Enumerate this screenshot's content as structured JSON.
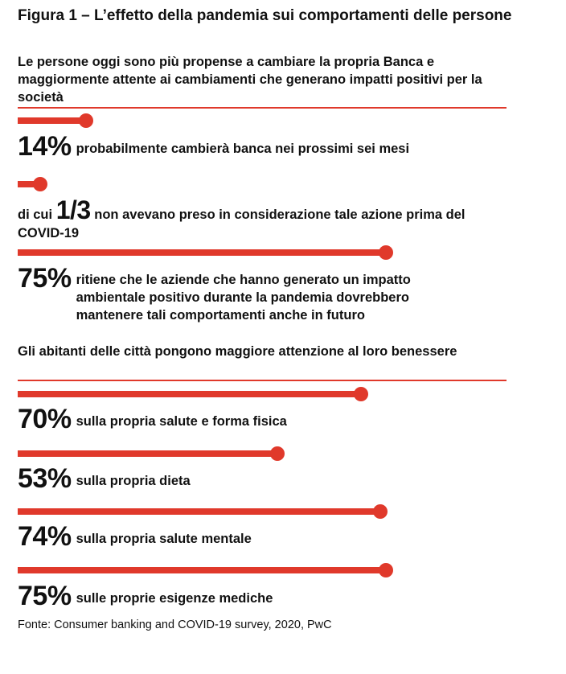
{
  "title": "Figura 1 – L’effetto della pandemia sui comportamenti delle persone",
  "section1": {
    "heading": "Le persone oggi sono più propense a cambiare la propria Banca e maggiormente attente ai cambiamenti che generano impatti positivi per la società"
  },
  "section2": {
    "heading": "Gli abitanti delle città pongono maggiore attenzione al loro benessere"
  },
  "chart_data": {
    "type": "bar",
    "orientation": "horizontal",
    "unit": "%",
    "xlim": [
      0,
      100
    ],
    "items": [
      {
        "value": 14,
        "label": "14%",
        "text": "probabilmente cambierà banca nei prossimi sei mesi",
        "section": 1
      },
      {
        "value": 4.67,
        "prefix": "di cui",
        "label": "1/3",
        "text": "non avevano preso in considerazione tale azione prima del COVID-19",
        "section": 1
      },
      {
        "value": 75,
        "label": "75%",
        "text": "ritiene che le aziende che hanno generato un impatto ambientale positivo durante la pandemia dovrebbero mantenere tali comportamenti anche in futuro",
        "section": 1
      },
      {
        "value": 70,
        "label": "70%",
        "text": "sulla propria salute e forma fisica",
        "section": 2
      },
      {
        "value": 53,
        "label": "53%",
        "text": "sulla propria dieta",
        "section": 2
      },
      {
        "value": 74,
        "label": "74%",
        "text": "sulla propria salute mentale",
        "section": 2
      },
      {
        "value": 75,
        "label": "75%",
        "text": "sulle proprie esigenze mediche",
        "section": 2
      }
    ],
    "colors": {
      "bar": "#e0392b"
    }
  },
  "source": "Fonte: Consumer banking and COVID-19 survey, 2020, PwC"
}
